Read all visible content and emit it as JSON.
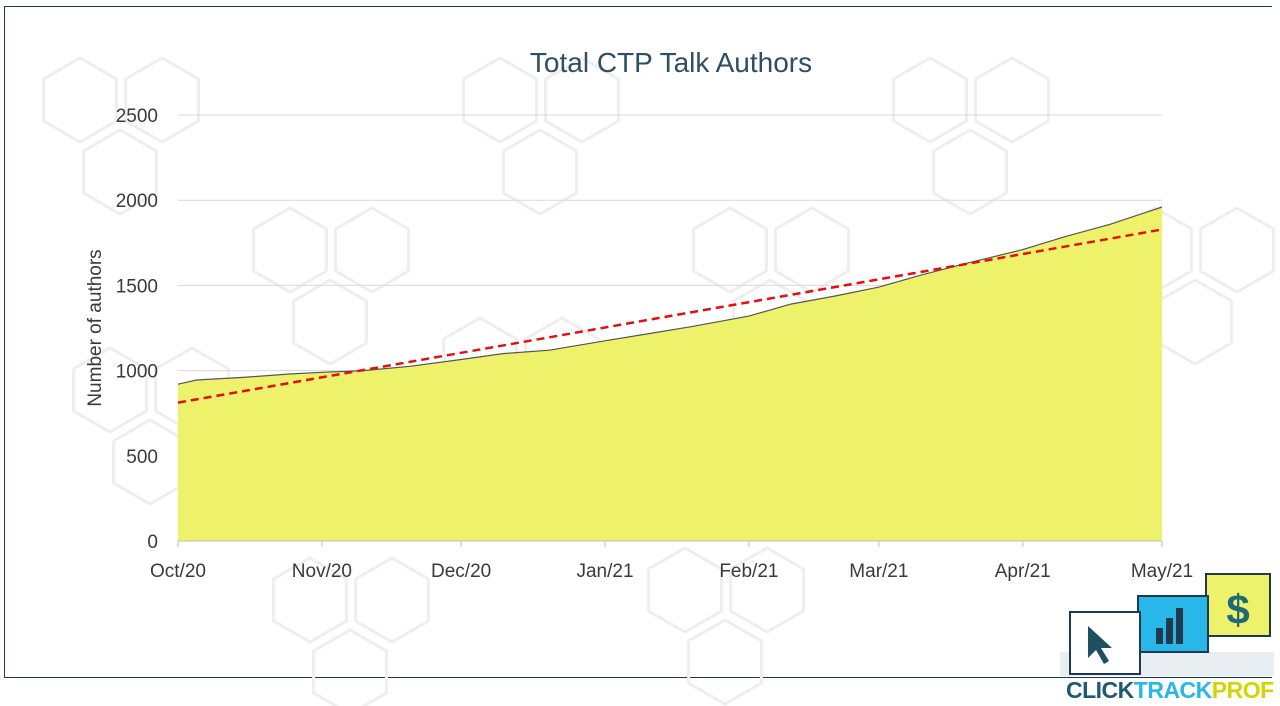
{
  "chart_data": {
    "type": "area",
    "title": "Total CTP Talk Authors",
    "ylabel": "Number of authors",
    "xlabel": "",
    "ylim": [
      0,
      2500
    ],
    "yticks": [
      0,
      500,
      1000,
      1500,
      2000,
      2500
    ],
    "x_ticks": [
      "Oct/20",
      "Nov/20",
      "Dec/20",
      "Jan/21",
      "Feb/21",
      "Mar/21",
      "Apr/21",
      "May/21"
    ],
    "x_start": "2020-10-01",
    "x_end": "2021-05-01",
    "grid": true,
    "series": [
      {
        "points": [
          [
            "2020-10-01",
            920
          ],
          [
            "2020-10-05",
            945
          ],
          [
            "2020-10-15",
            960
          ],
          [
            "2020-10-25",
            980
          ],
          [
            "2020-11-01",
            990
          ],
          [
            "2020-11-10",
            1000
          ],
          [
            "2020-11-20",
            1025
          ],
          [
            "2020-12-01",
            1065
          ],
          [
            "2020-12-10",
            1100
          ],
          [
            "2020-12-20",
            1120
          ],
          [
            "2021-01-01",
            1175
          ],
          [
            "2021-01-10",
            1215
          ],
          [
            "2021-01-20",
            1260
          ],
          [
            "2021-02-01",
            1320
          ],
          [
            "2021-02-10",
            1390
          ],
          [
            "2021-02-20",
            1440
          ],
          [
            "2021-03-01",
            1490
          ],
          [
            "2021-03-10",
            1560
          ],
          [
            "2021-03-20",
            1630
          ],
          [
            "2021-04-01",
            1710
          ],
          [
            "2021-04-10",
            1785
          ],
          [
            "2021-04-20",
            1860
          ],
          [
            "2021-05-01",
            1960
          ]
        ],
        "color": "#eef26a",
        "line_color": "#555555"
      }
    ],
    "trendline": {
      "start": 812,
      "end": 1828,
      "color": "#e01010",
      "style": "dashed"
    }
  },
  "logo": {
    "word1": "CLICK",
    "word2": "TRACK",
    "word3": "PROFIT",
    "dollar": "$",
    "colors": {
      "word1": "#1f5873",
      "word2": "#29b6e8",
      "word3": "#d4d400",
      "blue": "#29b6e8",
      "yellow": "#eef26a",
      "dark": "#1f3a4d"
    }
  }
}
